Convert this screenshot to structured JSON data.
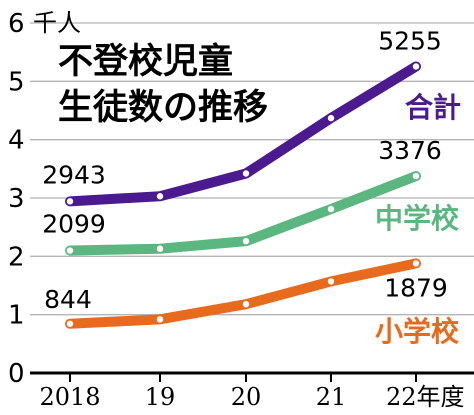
{
  "chart_data": {
    "type": "line",
    "title_lines": [
      "不登校児童",
      "生徒数の推移"
    ],
    "unit_label": "千人",
    "x": [
      "2018",
      "19",
      "20",
      "21",
      "22"
    ],
    "x_suffix": "年度",
    "ylim": [
      0,
      6
    ],
    "yticks": [
      "0",
      "1",
      "2",
      "3",
      "4",
      "5",
      "6"
    ],
    "series": [
      {
        "name": "合計",
        "color": "#4b1a8f",
        "values": [
          2.943,
          3.03,
          3.42,
          4.37,
          5.255
        ],
        "labels": [
          "2943",
          "",
          "",
          "",
          "5255"
        ]
      },
      {
        "name": "中学校",
        "color": "#5cb680",
        "values": [
          2.099,
          2.13,
          2.26,
          2.81,
          3.376
        ],
        "labels": [
          "2099",
          "",
          "",
          "",
          "3376"
        ]
      },
      {
        "name": "小学校",
        "color": "#e86b1d",
        "values": [
          0.844,
          0.92,
          1.18,
          1.57,
          1.879
        ],
        "labels": [
          "844",
          "",
          "",
          "",
          "1879"
        ]
      }
    ]
  }
}
